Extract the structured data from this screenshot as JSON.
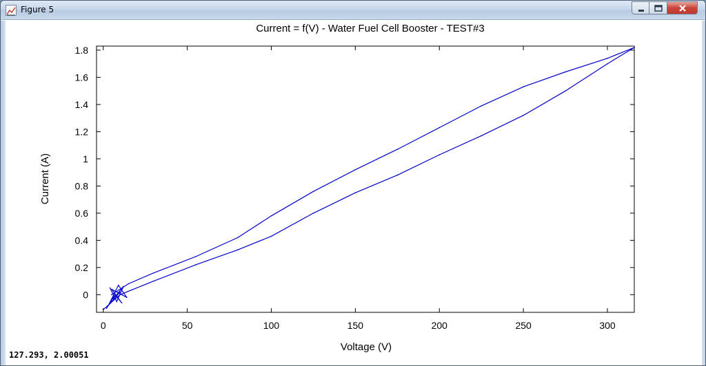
{
  "window": {
    "title": "Figure 5",
    "controls": [
      "minimize-icon",
      "maximize-icon",
      "close-icon"
    ]
  },
  "status": {
    "coordinates": "127.293,  2.00051"
  },
  "colors": {
    "series": "#0000cc",
    "axes": "#000000",
    "background": "#ffffff"
  },
  "chart_data": {
    "type": "line",
    "title": "Current = f(V) - Water Fuel Cell Booster - TEST#3",
    "xlabel": "Voltage (V)",
    "ylabel": "Current (A)",
    "xlim": [
      -4,
      316
    ],
    "ylim": [
      -0.13,
      1.83
    ],
    "xticks": [
      0,
      50,
      100,
      150,
      200,
      250,
      300
    ],
    "yticks": [
      0,
      0.2,
      0.4,
      0.6,
      0.8,
      1,
      1.2,
      1.4,
      1.6,
      1.8
    ],
    "ytick_labels": [
      "0",
      "0.2",
      "0.4",
      "0.6",
      "0.8",
      "1",
      "1.2",
      "1.4",
      "1.6",
      "1.8"
    ],
    "grid": false,
    "series": [
      {
        "x": [
          5,
          15,
          30,
          55,
          80,
          100,
          125,
          150,
          175,
          200,
          225,
          250,
          275,
          300,
          316
        ],
        "y": [
          0.0,
          0.08,
          0.16,
          0.28,
          0.42,
          0.58,
          0.76,
          0.92,
          1.07,
          1.23,
          1.39,
          1.53,
          1.64,
          1.74,
          1.82
        ]
      },
      {
        "x": [
          316,
          300,
          275,
          250,
          225,
          200,
          175,
          150,
          125,
          100,
          80,
          55,
          30,
          10,
          0
        ],
        "y": [
          1.82,
          1.7,
          1.5,
          1.32,
          1.17,
          1.03,
          0.88,
          0.75,
          0.6,
          0.43,
          0.33,
          0.22,
          0.1,
          0.0,
          -0.11
        ]
      },
      {
        "x": [
          4,
          8,
          12,
          6,
          10,
          3,
          9,
          14,
          5,
          11,
          7,
          2
        ],
        "y": [
          0.05,
          -0.05,
          0.06,
          -0.03,
          0.02,
          -0.08,
          0.07,
          -0.02,
          0.04,
          -0.06,
          0.0,
          -0.1
        ]
      }
    ]
  }
}
